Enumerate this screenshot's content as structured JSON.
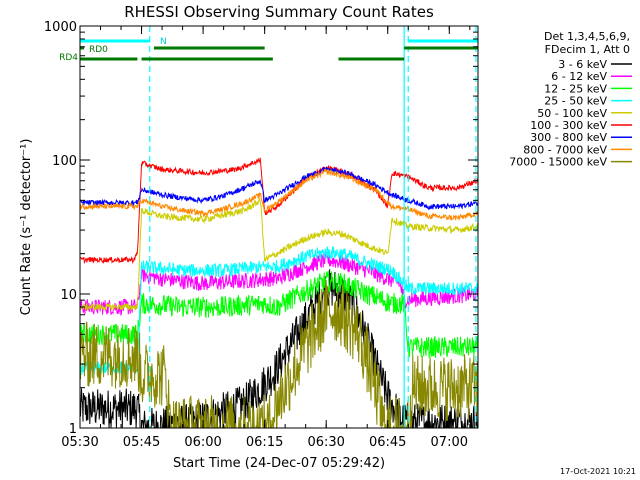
{
  "chart_data": {
    "type": "line",
    "title": "RHESSI Observing Summary Count Rates",
    "xlabel": "Start Time (24-Dec-07 05:29:42)",
    "ylabel": "Count Rate (s⁻¹ detector⁻¹)",
    "y_scale": "log",
    "ylim": [
      1,
      1000
    ],
    "xlim_minutes": [
      0,
      97
    ],
    "x_ticks": [
      {
        "t": 0,
        "label": "05:30"
      },
      {
        "t": 15,
        "label": "05:45"
      },
      {
        "t": 30,
        "label": "06:00"
      },
      {
        "t": 45,
        "label": "06:15"
      },
      {
        "t": 60,
        "label": "06:30"
      },
      {
        "t": 75,
        "label": "06:45"
      },
      {
        "t": 90,
        "label": "07:00"
      }
    ],
    "y_ticks": [
      {
        "v": 1,
        "label": "1"
      },
      {
        "v": 10,
        "label": "10"
      },
      {
        "v": 100,
        "label": "100"
      },
      {
        "v": 1000,
        "label": "1000"
      }
    ],
    "legend_header": [
      "Det 1,3,4,5,6,9,",
      "FDecim 1, Att 0"
    ],
    "legend_position": "right",
    "footer_date": "17-Oct-2021 10:21",
    "flags": [
      {
        "label": "N",
        "color": "#00ffff",
        "segments": [
          [
            0,
            17
          ],
          [
            80,
            97
          ]
        ]
      },
      {
        "label": "RD0",
        "color": "#007700",
        "segments": [
          [
            0,
            1
          ],
          [
            18,
            45
          ],
          [
            79,
            97
          ]
        ]
      },
      {
        "label": "RD4",
        "color": "#007700",
        "segments": [
          [
            0,
            14
          ],
          [
            15,
            47
          ],
          [
            63,
            79
          ]
        ]
      }
    ],
    "vertical_lines": [
      {
        "t": 17,
        "color": "#00ffff",
        "style": "dashed"
      },
      {
        "t": 79,
        "color": "#00ffff",
        "style": "solid"
      },
      {
        "t": 80,
        "color": "#00ffff",
        "style": "dashed"
      },
      {
        "t": 96.5,
        "color": "#00ffff",
        "style": "dashed"
      }
    ],
    "series": [
      {
        "name": "3 - 6 keV",
        "color": "#000000",
        "noise": 0.15,
        "points": [
          [
            0,
            1.4
          ],
          [
            14,
            1.4
          ],
          [
            15,
            1.0
          ],
          [
            28,
            1.1
          ],
          [
            40,
            1.5
          ],
          [
            47,
            2.5
          ],
          [
            52,
            4.5
          ],
          [
            57,
            8
          ],
          [
            60,
            11
          ],
          [
            63,
            11
          ],
          [
            67,
            8
          ],
          [
            70,
            4.5
          ],
          [
            73,
            2.5
          ],
          [
            75,
            1.7
          ],
          [
            78,
            1.2
          ],
          [
            80,
            1.1
          ],
          [
            97,
            1.1
          ]
        ]
      },
      {
        "name": "6 - 12 keV",
        "color": "#ff00ff",
        "noise": 0.06,
        "points": [
          [
            0,
            8
          ],
          [
            14,
            8
          ],
          [
            15,
            14
          ],
          [
            20,
            13
          ],
          [
            30,
            12
          ],
          [
            40,
            12.5
          ],
          [
            46,
            13
          ],
          [
            48,
            13
          ],
          [
            55,
            16
          ],
          [
            60,
            18
          ],
          [
            63,
            17.5
          ],
          [
            70,
            15
          ],
          [
            75,
            13
          ],
          [
            78,
            12
          ],
          [
            79,
            9
          ],
          [
            97,
            10
          ]
        ]
      },
      {
        "name": "12 - 25 keV",
        "color": "#00ff00",
        "noise": 0.08,
        "points": [
          [
            0,
            5
          ],
          [
            14,
            5
          ],
          [
            15,
            8.5
          ],
          [
            25,
            8
          ],
          [
            35,
            8
          ],
          [
            45,
            8.5
          ],
          [
            48,
            8
          ],
          [
            55,
            10.5
          ],
          [
            60,
            12.5
          ],
          [
            64,
            12
          ],
          [
            70,
            10
          ],
          [
            76,
            8.5
          ],
          [
            79,
            8.5
          ],
          [
            80,
            4
          ],
          [
            97,
            4
          ]
        ]
      },
      {
        "name": "25 - 50 keV",
        "color": "#00ffff",
        "noise": 0.05,
        "points": [
          [
            0,
            2.8
          ],
          [
            14,
            2.8
          ],
          [
            15,
            16
          ],
          [
            25,
            15
          ],
          [
            35,
            15
          ],
          [
            45,
            16
          ],
          [
            48,
            16
          ],
          [
            55,
            19
          ],
          [
            60,
            20.5
          ],
          [
            64,
            20
          ],
          [
            70,
            17
          ],
          [
            76,
            15
          ],
          [
            80,
            11
          ],
          [
            97,
            11
          ]
        ]
      },
      {
        "name": "50 - 100 keV",
        "color": "#cccc00",
        "noise": 0.025,
        "points": [
          [
            0,
            8
          ],
          [
            14,
            8
          ],
          [
            15,
            42
          ],
          [
            20,
            38
          ],
          [
            30,
            36
          ],
          [
            40,
            42
          ],
          [
            44,
            50
          ],
          [
            45,
            18
          ],
          [
            48,
            20
          ],
          [
            55,
            26
          ],
          [
            60,
            29
          ],
          [
            64,
            28
          ],
          [
            70,
            23
          ],
          [
            75,
            20
          ],
          [
            76,
            36
          ],
          [
            80,
            32
          ],
          [
            92,
            30
          ],
          [
            97,
            32
          ]
        ]
      },
      {
        "name": "100 - 300 keV",
        "color": "#ff0000",
        "noise": 0.02,
        "points": [
          [
            0,
            18
          ],
          [
            13,
            18
          ],
          [
            14,
            20
          ],
          [
            15,
            95
          ],
          [
            20,
            85
          ],
          [
            30,
            80
          ],
          [
            38,
            85
          ],
          [
            42,
            95
          ],
          [
            44,
            100
          ],
          [
            45,
            40
          ],
          [
            48,
            45
          ],
          [
            55,
            72
          ],
          [
            60,
            88
          ],
          [
            65,
            80
          ],
          [
            72,
            60
          ],
          [
            75,
            45
          ],
          [
            76,
            80
          ],
          [
            80,
            75
          ],
          [
            85,
            62
          ],
          [
            92,
            62
          ],
          [
            97,
            70
          ]
        ]
      },
      {
        "name": "300 - 800 keV",
        "color": "#0000ff",
        "noise": 0.02,
        "points": [
          [
            0,
            48
          ],
          [
            14,
            48
          ],
          [
            15,
            60
          ],
          [
            20,
            55
          ],
          [
            25,
            52
          ],
          [
            30,
            50
          ],
          [
            35,
            54
          ],
          [
            40,
            62
          ],
          [
            44,
            70
          ],
          [
            45,
            50
          ],
          [
            48,
            55
          ],
          [
            55,
            75
          ],
          [
            60,
            85
          ],
          [
            65,
            80
          ],
          [
            72,
            65
          ],
          [
            76,
            55
          ],
          [
            80,
            50
          ],
          [
            85,
            45
          ],
          [
            92,
            45
          ],
          [
            97,
            48
          ]
        ]
      },
      {
        "name": "800 - 7000 keV",
        "color": "#ff8800",
        "noise": 0.02,
        "points": [
          [
            0,
            45
          ],
          [
            14,
            45
          ],
          [
            15,
            50
          ],
          [
            20,
            45
          ],
          [
            25,
            42
          ],
          [
            30,
            40
          ],
          [
            35,
            43
          ],
          [
            40,
            48
          ],
          [
            44,
            55
          ],
          [
            45,
            42
          ],
          [
            48,
            48
          ],
          [
            55,
            70
          ],
          [
            60,
            82
          ],
          [
            65,
            75
          ],
          [
            72,
            60
          ],
          [
            76,
            45
          ],
          [
            80,
            43
          ],
          [
            85,
            38
          ],
          [
            92,
            37
          ],
          [
            97,
            40
          ]
        ]
      },
      {
        "name": "7000 - 15000 keV",
        "color": "#888800",
        "noise": 0.25,
        "points": [
          [
            0,
            3.5
          ],
          [
            14,
            3.5
          ],
          [
            15,
            2.5
          ],
          [
            21,
            2.5
          ],
          [
            22,
            1.0
          ],
          [
            40,
            1.0
          ],
          [
            46,
            1.0
          ],
          [
            48,
            1.5
          ],
          [
            50,
            2.0
          ],
          [
            55,
            4.0
          ],
          [
            60,
            7.5
          ],
          [
            63,
            7.5
          ],
          [
            68,
            5
          ],
          [
            71,
            2.5
          ],
          [
            73,
            1.5
          ],
          [
            74,
            1.0
          ],
          [
            80,
            1.0
          ],
          [
            81,
            2.0
          ],
          [
            97,
            2.0
          ]
        ]
      }
    ]
  }
}
